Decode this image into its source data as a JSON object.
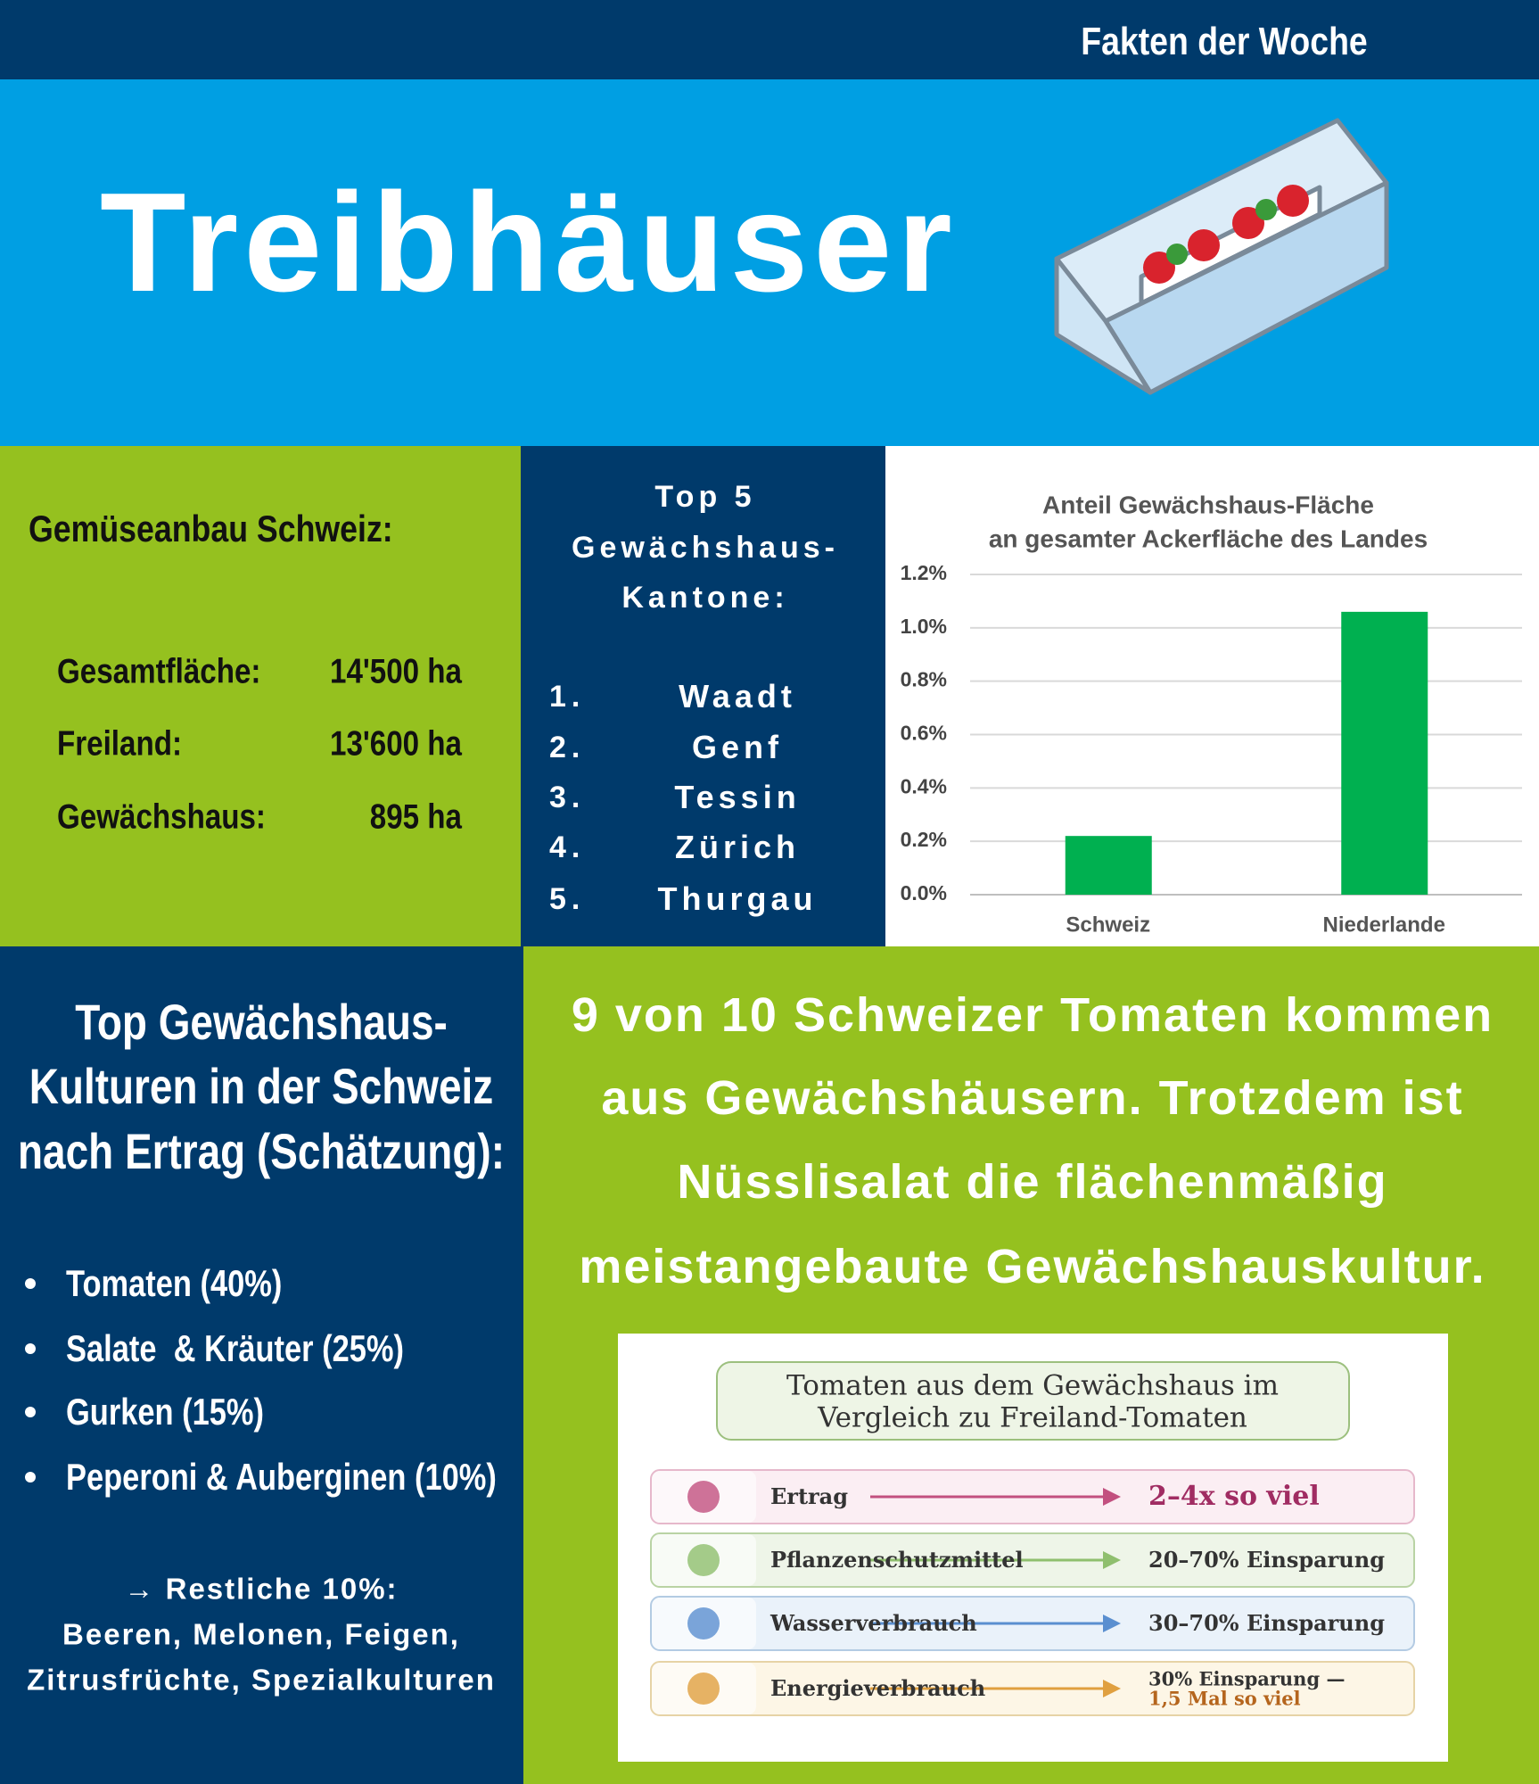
{
  "header": {
    "kicker": "Fakten der Woche",
    "title": "Treibhäuser"
  },
  "facts": {
    "title": "Gemüseanbau Schweiz:",
    "rows": [
      {
        "label": "Gesamtfläche:",
        "value": "14'500 ha"
      },
      {
        "label": "Freiland:",
        "value": "13'600 ha"
      },
      {
        "label": "Gewächshaus:",
        "value": "895 ha"
      }
    ]
  },
  "top5": {
    "title_lines": [
      "Top 5",
      "Gewächshaus-",
      "Kantone:"
    ],
    "items": [
      {
        "rank": "1.",
        "name": "Waadt"
      },
      {
        "rank": "2.",
        "name": "Genf"
      },
      {
        "rank": "3.",
        "name": "Tessin"
      },
      {
        "rank": "4.",
        "name": "Zürich"
      },
      {
        "rank": "5.",
        "name": "Thurgau"
      }
    ]
  },
  "chart_data": {
    "type": "bar",
    "title": [
      "Anteil Gewächshaus-Fläche",
      "an gesamter Ackerfläche des Landes"
    ],
    "categories": [
      "Schweiz",
      "Niederlande"
    ],
    "values": [
      0.22,
      1.06
    ],
    "color": "#00b050",
    "ylim": [
      0,
      1.2
    ],
    "yticks": [
      {
        "value": 0,
        "label": "0.0%"
      },
      {
        "value": 0.2,
        "label": "0.2%"
      },
      {
        "value": 0.4,
        "label": "0.4%"
      },
      {
        "value": 0.6,
        "label": "0.6%"
      },
      {
        "value": 0.8,
        "label": "0.8%"
      },
      {
        "value": 1.0,
        "label": "1.0%"
      },
      {
        "value": 1.2,
        "label": "1.2%"
      }
    ],
    "grid": true
  },
  "crops": {
    "title_lines": [
      "Top Gewächshaus-",
      "Kulturen in der Schweiz",
      "nach Ertrag (Schätzung):"
    ],
    "items": [
      "Tomaten (40%)",
      "Salate  & Kräuter (25%)",
      "Gurken (15%)",
      "Peperoni & Auberginen (10%)"
    ],
    "rest_lines": [
      "→ Restliche 10%:",
      "Beeren, Melonen, Feigen,",
      "Zitrusfrüchte, Spezialkulturen"
    ]
  },
  "remark": {
    "lines": [
      "9 von 10 Schweizer Tomaten kommen",
      "aus Gewächshäusern. Trotzdem ist",
      "Nüsslisalat die flächenmäßig",
      "meistangebaute Gewächshauskultur."
    ]
  },
  "comparison": {
    "title_lines": [
      "Tomaten aus dem Gewächshaus im",
      "Vergleich zu Freiland-Tomaten"
    ],
    "rows": [
      {
        "label": "Ertrag",
        "value_lines": [
          "2–4x so viel"
        ]
      },
      {
        "label": "Pflanzenschutzmittel",
        "value_lines": [
          "20–70% Einsparung"
        ]
      },
      {
        "label": "Wasserverbrauch",
        "value_lines": [
          "30–70% Einsparung"
        ]
      },
      {
        "label": "Energieverbrauch",
        "value_lines": [
          "30% Einsparung —",
          "1,5 Mal so viel"
        ]
      }
    ]
  }
}
